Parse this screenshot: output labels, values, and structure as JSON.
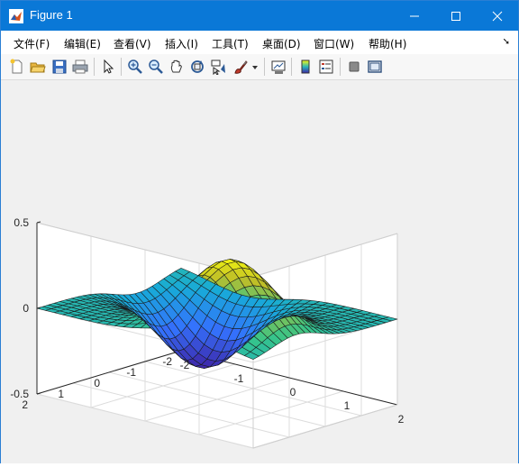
{
  "window": {
    "title": "Figure 1",
    "accent": "#0a78d7"
  },
  "menubar": {
    "items": [
      "文件(F)",
      "编辑(E)",
      "查看(V)",
      "插入(I)",
      "工具(T)",
      "桌面(D)",
      "窗口(W)",
      "帮助(H)"
    ]
  },
  "toolbar": {
    "buttons": [
      "new-figure-icon",
      "open-file-icon",
      "save-icon",
      "print-icon",
      "pointer-icon",
      "zoom-in-icon",
      "zoom-out-icon",
      "pan-icon",
      "rotate-3d-icon",
      "data-cursor-icon",
      "brush-icon",
      "dropdown-icon",
      "link-plot-icon",
      "colorbar-icon",
      "legend-icon",
      "hide-plot-tools-icon",
      "show-plot-tools-icon"
    ]
  },
  "chart_data": {
    "type": "surface",
    "function": "peaks-like surface z(x,y) over x,y in [-2,2]",
    "colormap": "parula",
    "xlim": [
      -2,
      2
    ],
    "ylim": [
      -2,
      2
    ],
    "zlim": [
      -0.5,
      0.5
    ],
    "xticks": [
      "-2",
      "-1",
      "0",
      "1",
      "2"
    ],
    "yticks": [
      "-2",
      "-1",
      "0",
      "1",
      "2"
    ],
    "zticks": [
      "-0.5",
      "0",
      "0.5"
    ],
    "grid": true,
    "z_max_approx": 0.43,
    "z_min_approx": -0.43
  }
}
